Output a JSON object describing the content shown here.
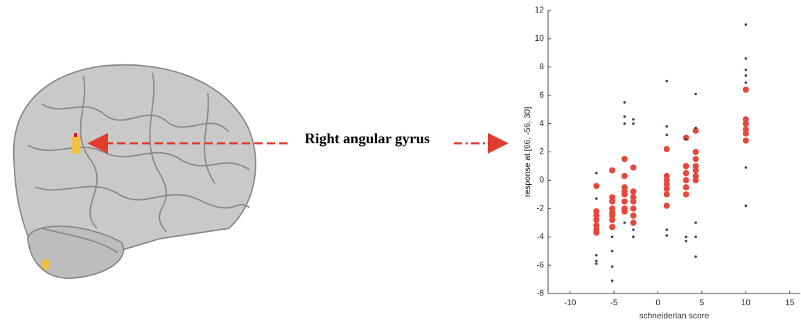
{
  "chart_data": {
    "type": "scatter",
    "annotation": "Right angular gyrus",
    "xlabel": "schneiderian score",
    "ylabel": "response at [66, -56, 30]",
    "xlim": [
      -12.5,
      16.2
    ],
    "ylim": [
      -8,
      12
    ],
    "xticks": [
      -10,
      -5,
      0,
      5,
      10,
      15
    ],
    "yticks": [
      -8,
      -6,
      -4,
      -2,
      0,
      2,
      4,
      6,
      8,
      10,
      12
    ],
    "series": [
      {
        "color": "#e8483a",
        "x": [
          -7,
          -7,
          -7,
          -7,
          -7,
          -7,
          -7,
          -5.2,
          -5.2,
          -5.2,
          -5.2,
          -5.2,
          -5.2,
          -5.2,
          -5.2,
          -3.8,
          -3.8,
          -3.8,
          -3.8,
          -3.8,
          -3.8,
          -3.8,
          -3.8,
          -2.8,
          -2.8,
          -2.8,
          -2.8,
          -2.8,
          -2.8,
          -2.8,
          1,
          1,
          1,
          1,
          1,
          1,
          1,
          3.2,
          3.2,
          3.2,
          3.2,
          3.2,
          3.2,
          4.3,
          4.3,
          4.3,
          4.3,
          4.3,
          4.3,
          4.3,
          10,
          10,
          10,
          10,
          10,
          10
        ],
        "values": [
          -0.4,
          -2.2,
          -2.5,
          -2.8,
          -3.2,
          -3.5,
          -3.7,
          0.7,
          -1.2,
          -1.5,
          -2.0,
          -2.3,
          -2.5,
          -2.8,
          -3.3,
          1.5,
          0.3,
          -0.5,
          -0.8,
          -1.0,
          -1.5,
          -2.0,
          -2.2,
          0.9,
          -0.8,
          -1.2,
          -1.5,
          -2.0,
          -2.5,
          -3.0,
          2.2,
          0.3,
          0,
          -0.3,
          -0.6,
          -1.0,
          -1.8,
          3.0,
          1.0,
          0.5,
          0,
          -0.5,
          -1.0,
          3.5,
          2.0,
          1.5,
          1.0,
          0.7,
          0.3,
          0,
          6.4,
          4.3,
          4.0,
          3.6,
          3.3,
          2.8
        ]
      },
      {
        "color": "#3a3f5a",
        "x": [
          -7,
          -7,
          -7,
          -7,
          -7,
          -5.2,
          -5.2,
          -5.2,
          -5.2,
          -3.8,
          -3.8,
          -3.8,
          -3.8,
          -2.8,
          -2.8,
          -2.8,
          -2.8,
          1,
          1,
          1,
          1,
          1,
          3.2,
          3.2,
          3.2,
          4.3,
          4.3,
          4.3,
          4.3,
          4.3,
          10,
          10,
          10,
          10,
          10,
          10,
          10
        ],
        "values": [
          0.5,
          -5.3,
          -5.7,
          -5.9,
          -1.3,
          -4,
          -5,
          -6.1,
          -7.1,
          5.5,
          4.5,
          4.0,
          -3,
          4.3,
          4.0,
          -3.5,
          -4,
          7,
          3.8,
          3.2,
          -3.5,
          -3.9,
          2.9,
          -4,
          -4.3,
          6.1,
          3.7,
          -3,
          -4,
          -5.4,
          11,
          8.6,
          7.8,
          7.4,
          6.9,
          0.9,
          -1.8
        ]
      }
    ]
  }
}
